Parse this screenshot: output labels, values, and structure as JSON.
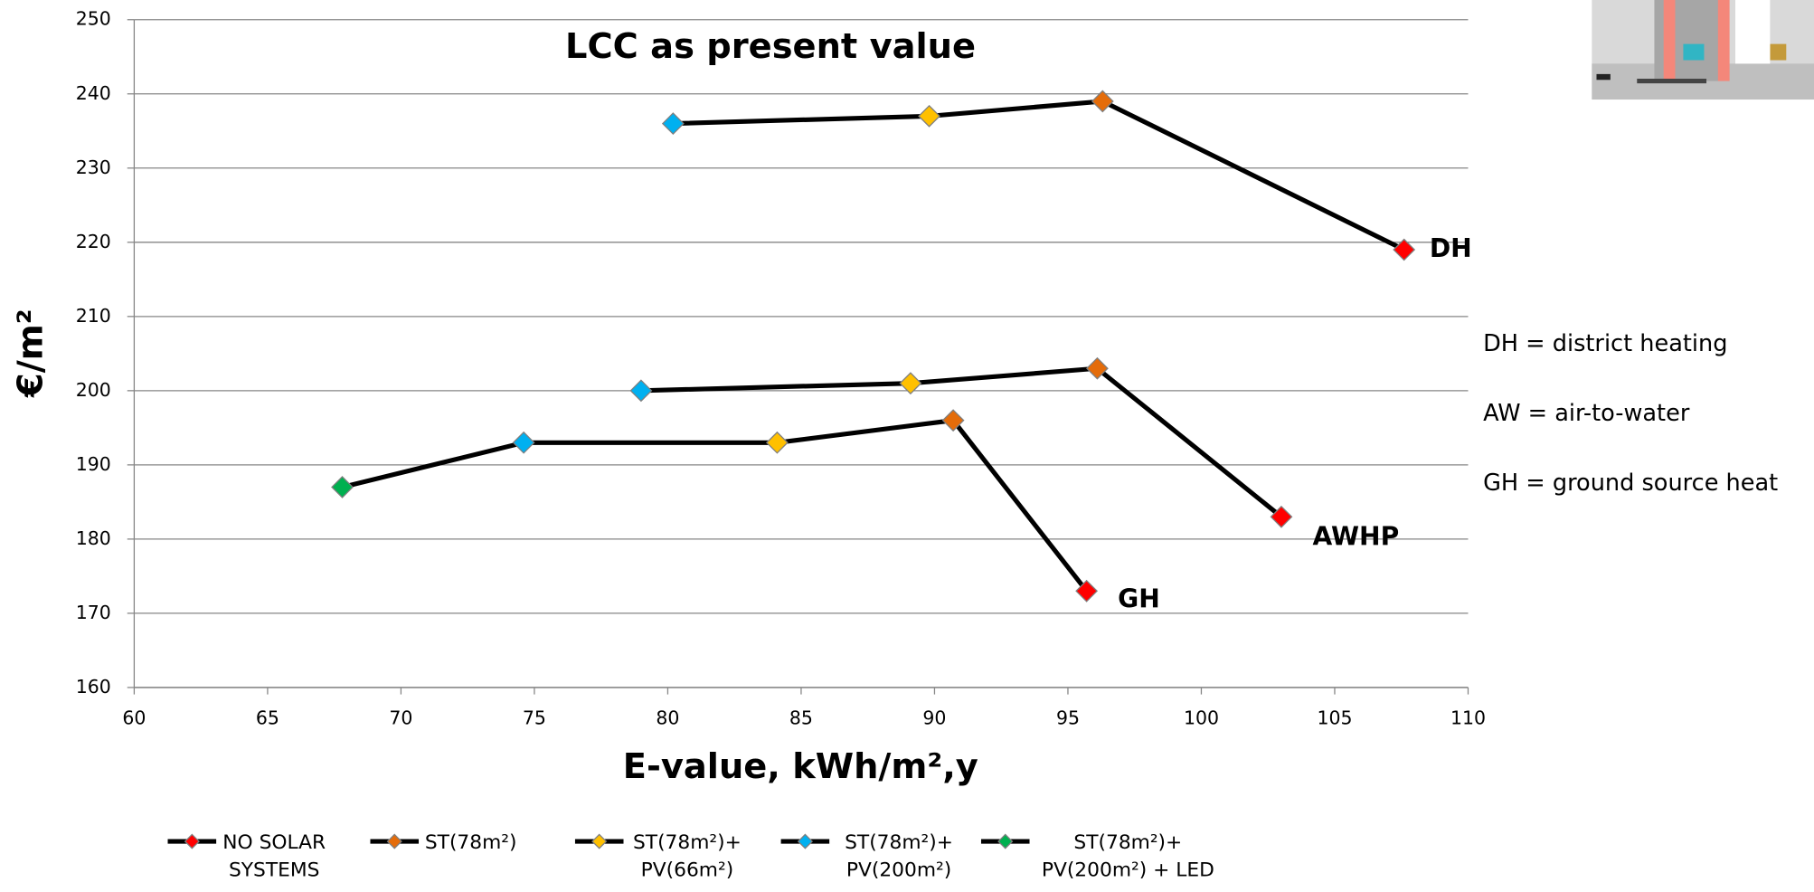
{
  "chart_data": {
    "type": "line",
    "title": "LCC as present value",
    "x_label": "E-value, kWh/m²,y",
    "y_label": "€/m²",
    "xlim": [
      60,
      110
    ],
    "xticks": [
      60,
      65,
      70,
      75,
      80,
      85,
      90,
      95,
      100,
      105,
      110
    ],
    "ylim": [
      160,
      250
    ],
    "yticks": [
      160,
      170,
      180,
      190,
      200,
      210,
      220,
      230,
      240,
      250
    ],
    "grid": true,
    "line_color": "#000000",
    "lines": [
      "DH",
      "AWHP",
      "GH"
    ],
    "series": [
      {
        "name": "NO SOLAR SYSTEMS",
        "color": "#ff0000",
        "x": [
          107.6,
          103,
          95.7
        ],
        "values": [
          219,
          183,
          173
        ]
      },
      {
        "name": "ST(78m²)",
        "color": "#e46c0a",
        "x": [
          96.3,
          96.1,
          90.7
        ],
        "values": [
          239,
          203,
          196
        ]
      },
      {
        "name": "ST(78m²)+ PV(66m²)",
        "color": "#ffc000",
        "x": [
          89.8,
          89.1,
          84.1
        ],
        "values": [
          237,
          201,
          193
        ]
      },
      {
        "name": "ST(78m²)+ PV(200m²)",
        "color": "#00b0f0",
        "x": [
          80.2,
          79,
          74.6
        ],
        "values": [
          236,
          200,
          193
        ]
      },
      {
        "name": "ST(78m²)+ PV(200m²) + LED",
        "color": "#00b050",
        "x": [
          null,
          null,
          67.8
        ],
        "values": [
          null,
          null,
          187
        ]
      }
    ],
    "annotations": [
      "DH = district heating",
      "AW = air-to-water",
      "GH = ground source heat"
    ]
  }
}
